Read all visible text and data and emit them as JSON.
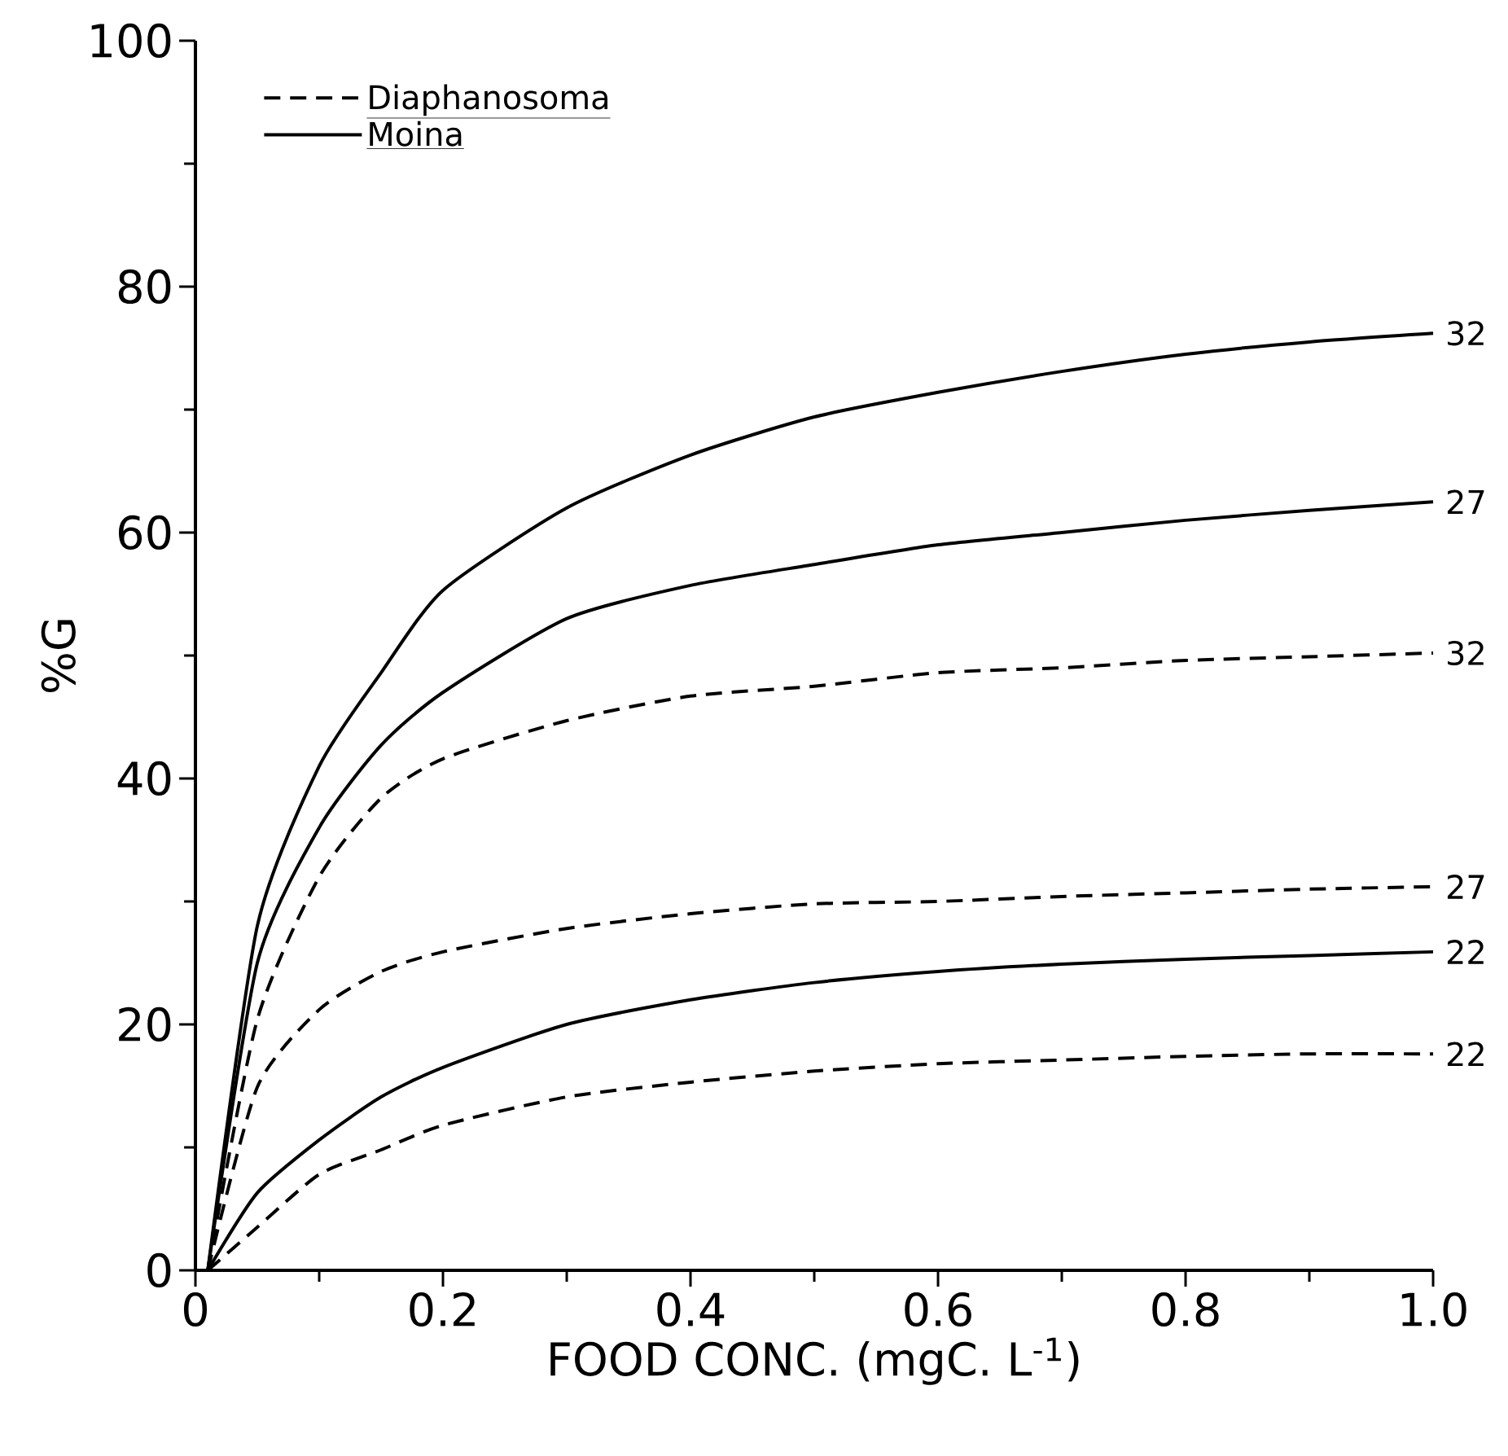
{
  "chart_data": {
    "type": "line",
    "xlabel": "FOOD CONC. (mgC. L$^{-1}$)",
    "ylabel": "%G",
    "x": [
      0.01,
      0.05,
      0.1,
      0.15,
      0.2,
      0.3,
      0.4,
      0.5,
      0.6,
      0.7,
      0.8,
      0.9,
      1.0
    ],
    "series": [
      {
        "name": "Diaphanosoma",
        "color": "#000000",
        "line_style": "dashed",
        "values": [
          0,
          20.4,
          32,
          38.4,
          41.6,
          44.7,
          46.7,
          47.5,
          48.6,
          49,
          49.6,
          49.9,
          50.2
        ]
      },
      {
        "name": "Moina",
        "color": "#000000",
        "line_style": "solid",
        "values": [
          0,
          28,
          41,
          48.6,
          55.3,
          62,
          66.3,
          69.4,
          71.4,
          73.1,
          74.5,
          75.5,
          76.2
        ]
      },
      {
        "color": "#000000",
        "line_style": "solid",
        "values": [
          0,
          25,
          36,
          42.7,
          47,
          53,
          55.7,
          57.4,
          59,
          60,
          61,
          61.8,
          62.5
        ]
      },
      {
        "color": "#000000",
        "line_style": "dashed",
        "values": [
          0,
          14.9,
          21.2,
          24.3,
          25.9,
          27.8,
          29,
          29.8,
          30,
          30.4,
          30.7,
          31,
          31.2
        ]
      },
      {
        "color": "#000000",
        "line_style": "solid",
        "values": [
          0,
          6.3,
          10.6,
          14.1,
          16.5,
          20,
          22,
          23.4,
          24.3,
          24.9,
          25.3,
          25.6,
          25.9
        ]
      },
      {
        "color": "#000000",
        "line_style": "dashed",
        "values": [
          0,
          3.5,
          7.8,
          9.8,
          11.8,
          14.1,
          15.3,
          16.2,
          16.8,
          17.1,
          17.4,
          17.6,
          17.6
        ]
      }
    ],
    "annotations": [
      "32",
      "32",
      "27",
      "27",
      "22",
      "22"
    ],
    "xlim": [
      0,
      1.0
    ],
    "xticks": [
      0,
      0.2,
      0.4,
      0.6,
      0.8,
      {
        "value": 1.0,
        "label": "1.0"
      }
    ],
    "ylim": [
      0,
      100
    ],
    "yticks": [
      0,
      20,
      40,
      60,
      80,
      100
    ],
    "grid": false,
    "legend": "top left",
    "marker": "none"
  }
}
